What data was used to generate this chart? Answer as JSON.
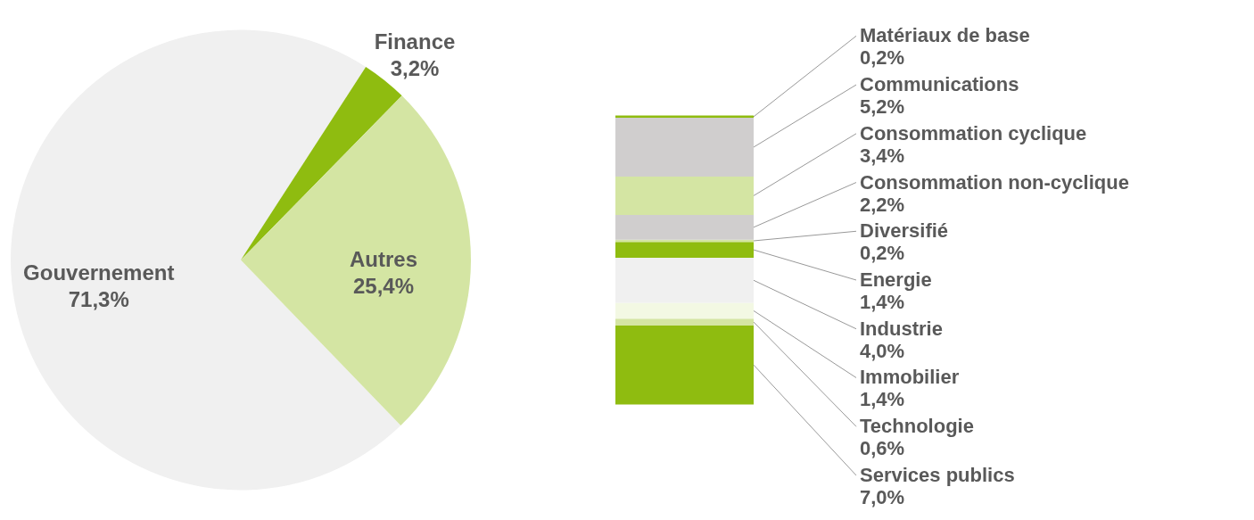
{
  "chart_data": [
    {
      "type": "pie",
      "categories": [
        "Gouvernement",
        "Finance",
        "Autres"
      ],
      "values": [
        71.3,
        3.2,
        25.4
      ],
      "colors": [
        "#f0f0f0",
        "#8fbc10",
        "#d4e5a3"
      ],
      "value_labels": [
        "71,3%",
        "3,2%",
        "25,4%"
      ]
    },
    {
      "type": "bar",
      "stacked": true,
      "categories": [
        null
      ],
      "series": [
        {
          "name": "Services publics",
          "color": "#8fbc10",
          "values": [
            7.0
          ],
          "value_labels": [
            "7,0%"
          ]
        },
        {
          "name": "Technologie",
          "color": "#d4e5a3",
          "values": [
            0.6
          ],
          "value_labels": [
            "0,6%"
          ]
        },
        {
          "name": "Immobilier",
          "color": "#f3f8e3",
          "values": [
            1.4
          ],
          "value_labels": [
            "1,4%"
          ]
        },
        {
          "name": "Industrie",
          "color": "#f0f0f0",
          "values": [
            4.0
          ],
          "value_labels": [
            "4,0%"
          ]
        },
        {
          "name": "Energie",
          "color": "#8fbc10",
          "values": [
            1.4
          ],
          "value_labels": [
            "1,4%"
          ]
        },
        {
          "name": "Diversifié",
          "color": "#d4e5a3",
          "values": [
            0.2
          ],
          "value_labels": [
            "0,2%"
          ]
        },
        {
          "name": "Consommation non-cyclique",
          "color": "#d0cece",
          "values": [
            2.2
          ],
          "value_labels": [
            "2,2%"
          ]
        },
        {
          "name": "Consommation cyclique",
          "color": "#d4e5a3",
          "values": [
            3.4
          ],
          "value_labels": [
            "3,4%"
          ]
        },
        {
          "name": "Communications",
          "color": "#d0cece",
          "values": [
            5.2
          ],
          "value_labels": [
            "5,2%"
          ]
        },
        {
          "name": "Matériaux de base",
          "color": "#8fbc10",
          "values": [
            0.2
          ],
          "value_labels": [
            "0,2%"
          ]
        }
      ]
    }
  ]
}
